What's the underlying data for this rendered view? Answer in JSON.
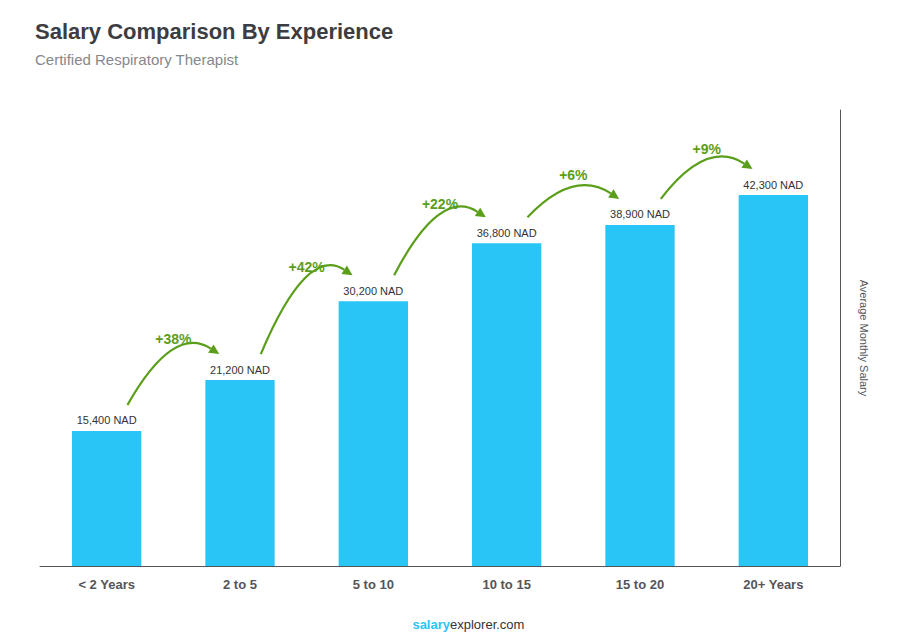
{
  "chart_data": {
    "type": "bar",
    "title": "Salary Comparison By Experience",
    "subtitle": "Certified Respiratory Therapist",
    "ylabel": "Average Monthly Salary",
    "categories": [
      "< 2 Years",
      "2 to 5",
      "5 to 10",
      "10 to 15",
      "15 to 20",
      "20+ Years"
    ],
    "values": [
      15400,
      21200,
      30200,
      36800,
      38900,
      42300
    ],
    "value_labels": [
      "15,400 NAD",
      "21,200 NAD",
      "30,200 NAD",
      "36,800 NAD",
      "38,900 NAD",
      "42,300 NAD"
    ],
    "data_labels": true,
    "annotations": [
      "+38%",
      "+42%",
      "+22%",
      "+6%",
      "+9%"
    ],
    "footer": [
      "salary",
      "explorer.com"
    ],
    "color": "#29C5F6",
    "ylim": [
      0,
      52000
    ],
    "grid": false,
    "tick_labels": "x"
  }
}
